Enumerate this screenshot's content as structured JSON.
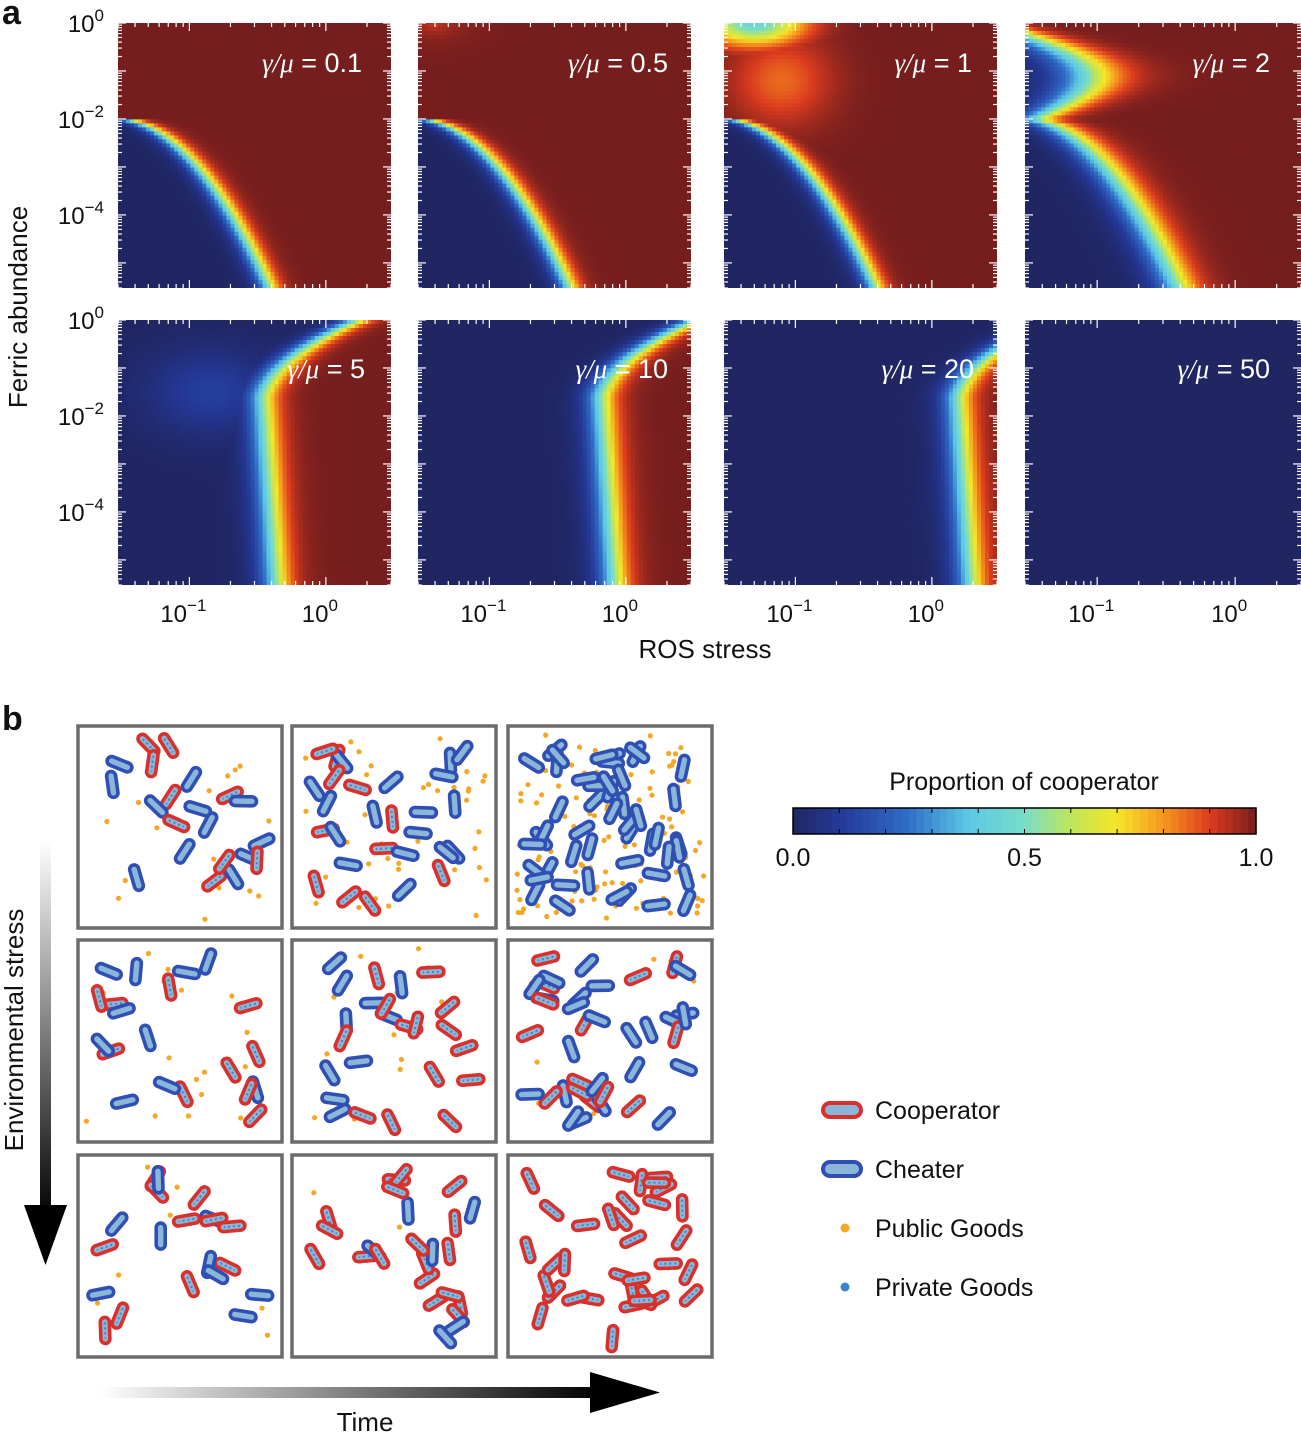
{
  "figure": {
    "panel_a_letter": "a",
    "panel_b_letter": "b"
  },
  "chart_data": [
    {
      "type": "heatmap",
      "title": "",
      "xlabel": "ROS stress",
      "ylabel": "Ferric abundance",
      "x_scale": "log",
      "y_scale": "log",
      "xlim": [
        0.03,
        3
      ],
      "ylim": [
        3e-06,
        1
      ],
      "x_ticks": [
        {
          "value": 0.1,
          "base": "10",
          "exp": "−1"
        },
        {
          "value": 1,
          "base": "10",
          "exp": "0"
        }
      ],
      "y_ticks": [
        {
          "value": 1,
          "base": "10",
          "exp": "0"
        },
        {
          "value": 0.01,
          "base": "10",
          "exp": "−2"
        },
        {
          "value": 0.0001,
          "base": "10",
          "exp": "−4"
        }
      ],
      "color_scale": "jet",
      "colorbar": {
        "title": "Proportion of cooperator",
        "ticks": [
          "0.0",
          "0.5",
          "1.0"
        ],
        "range": [
          0,
          1
        ]
      },
      "panels": [
        {
          "gamma_over_mu": "0.1",
          "label_prefix": "γ/μ = "
        },
        {
          "gamma_over_mu": "0.5",
          "label_prefix": "γ/μ = "
        },
        {
          "gamma_over_mu": "1",
          "label_prefix": "γ/μ = "
        },
        {
          "gamma_over_mu": "2",
          "label_prefix": "γ/μ = "
        },
        {
          "gamma_over_mu": "5",
          "label_prefix": "γ/μ = "
        },
        {
          "gamma_over_mu": "10",
          "label_prefix": "γ/μ = "
        },
        {
          "gamma_over_mu": "20",
          "label_prefix": "γ/μ = "
        },
        {
          "gamma_over_mu": "50",
          "label_prefix": "γ/μ = "
        }
      ],
      "grid": false
    }
  ],
  "panel_b": {
    "x_axis_label": "Time",
    "y_axis_label": "Environmental stress",
    "legend": [
      {
        "label": "Cooperator",
        "symbol": "red-rod"
      },
      {
        "label": "Cheater",
        "symbol": "blue-rod"
      },
      {
        "label": "Public Goods",
        "symbol": "orange-dot"
      },
      {
        "label": "Private Goods",
        "symbol": "blue-dot"
      }
    ],
    "colors": {
      "cooperator": "#d9302c",
      "cheater": "#2f4fb5",
      "rod_fill": "#8ab6d8",
      "public_goods": "#f5a623",
      "private_goods": "#3a86c8",
      "box_border": "#6b6b6b"
    },
    "grid_rows": 3,
    "grid_cols": 3
  }
}
